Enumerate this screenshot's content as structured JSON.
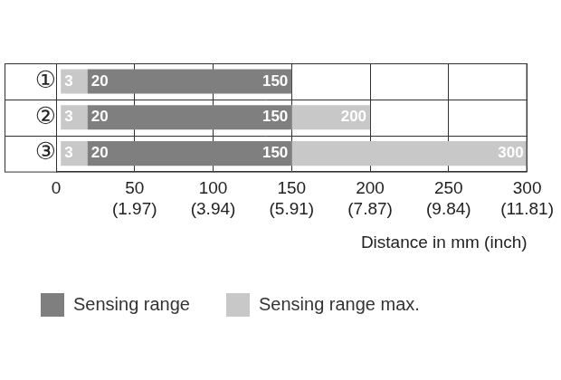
{
  "chart_data": {
    "type": "bar",
    "orientation": "horizontal",
    "categories": [
      "①",
      "②",
      "③"
    ],
    "series": [
      {
        "name": "Sensing range",
        "color": "#7f7f7f",
        "values": [
          [
            [
              20,
              150
            ]
          ],
          [
            [
              20,
              150
            ]
          ],
          [
            [
              20,
              150
            ]
          ]
        ]
      },
      {
        "name": "Sensing range max.",
        "color": "#c8c8c8",
        "values": [
          [
            [
              3,
              20
            ]
          ],
          [
            [
              3,
              20
            ],
            [
              150,
              200
            ]
          ],
          [
            [
              3,
              20
            ],
            [
              150,
              300
            ]
          ]
        ]
      }
    ],
    "x_label": "Distance in mm (inch)",
    "xlim": [
      0,
      300
    ],
    "xticks": [
      0,
      {
        "value": 50,
        "label": "50\n(1.97)"
      },
      {
        "value": 100,
        "label": "100\n(3.94)"
      },
      {
        "value": 150,
        "label": "150\n(5.91)"
      },
      {
        "value": 200,
        "label": "200\n(7.87)"
      },
      {
        "value": 250,
        "label": "250\n(9.84)"
      },
      {
        "value": 300,
        "label": "300\n(11.81)"
      }
    ],
    "grid": true,
    "legend": "bottom left",
    "data_labels": true
  }
}
